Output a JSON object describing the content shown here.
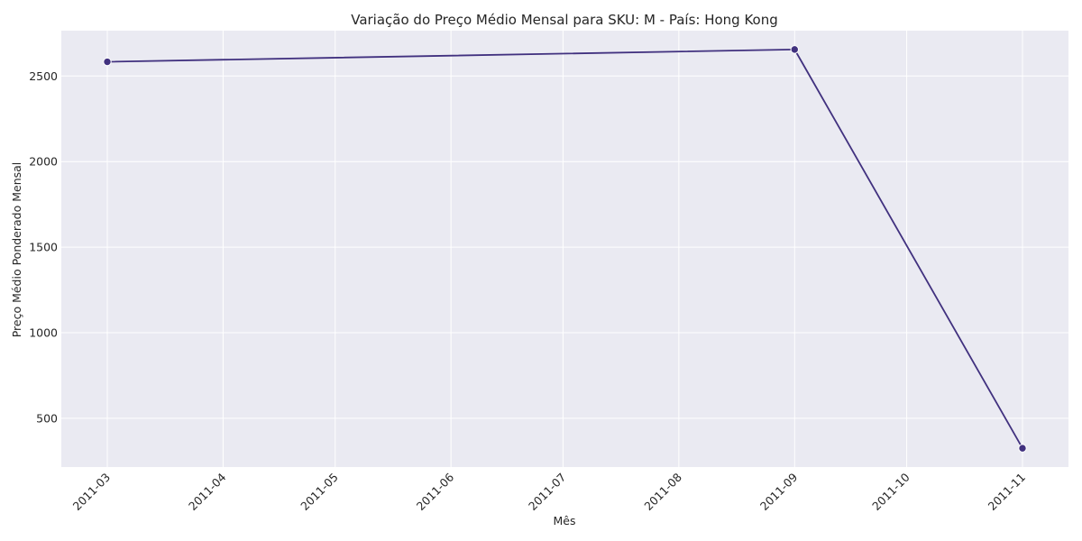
{
  "chart_data": {
    "type": "line",
    "title": "Variação do Preço Médio Mensal para SKU: M - País: Hong Kong",
    "xlabel": "Mês",
    "ylabel": "Preço Médio Ponderado Mensal",
    "x": [
      "2011-03",
      "2011-09",
      "2011-11"
    ],
    "series": [
      {
        "values": [
          2583,
          2655,
          325
        ]
      }
    ],
    "x_ticks": [
      "2011-03",
      "2011-04",
      "2011-05",
      "2011-06",
      "2011-07",
      "2011-08",
      "2011-09",
      "2011-10",
      "2011-11"
    ],
    "y_ticks": [
      500,
      1000,
      1500,
      2000,
      2500
    ],
    "ylim": [
      215,
      2765
    ],
    "grid": true,
    "colors": {
      "line": "#41317f",
      "marker": "#41317f",
      "background": "#eaeaf2",
      "grid": "#ffffff"
    }
  }
}
